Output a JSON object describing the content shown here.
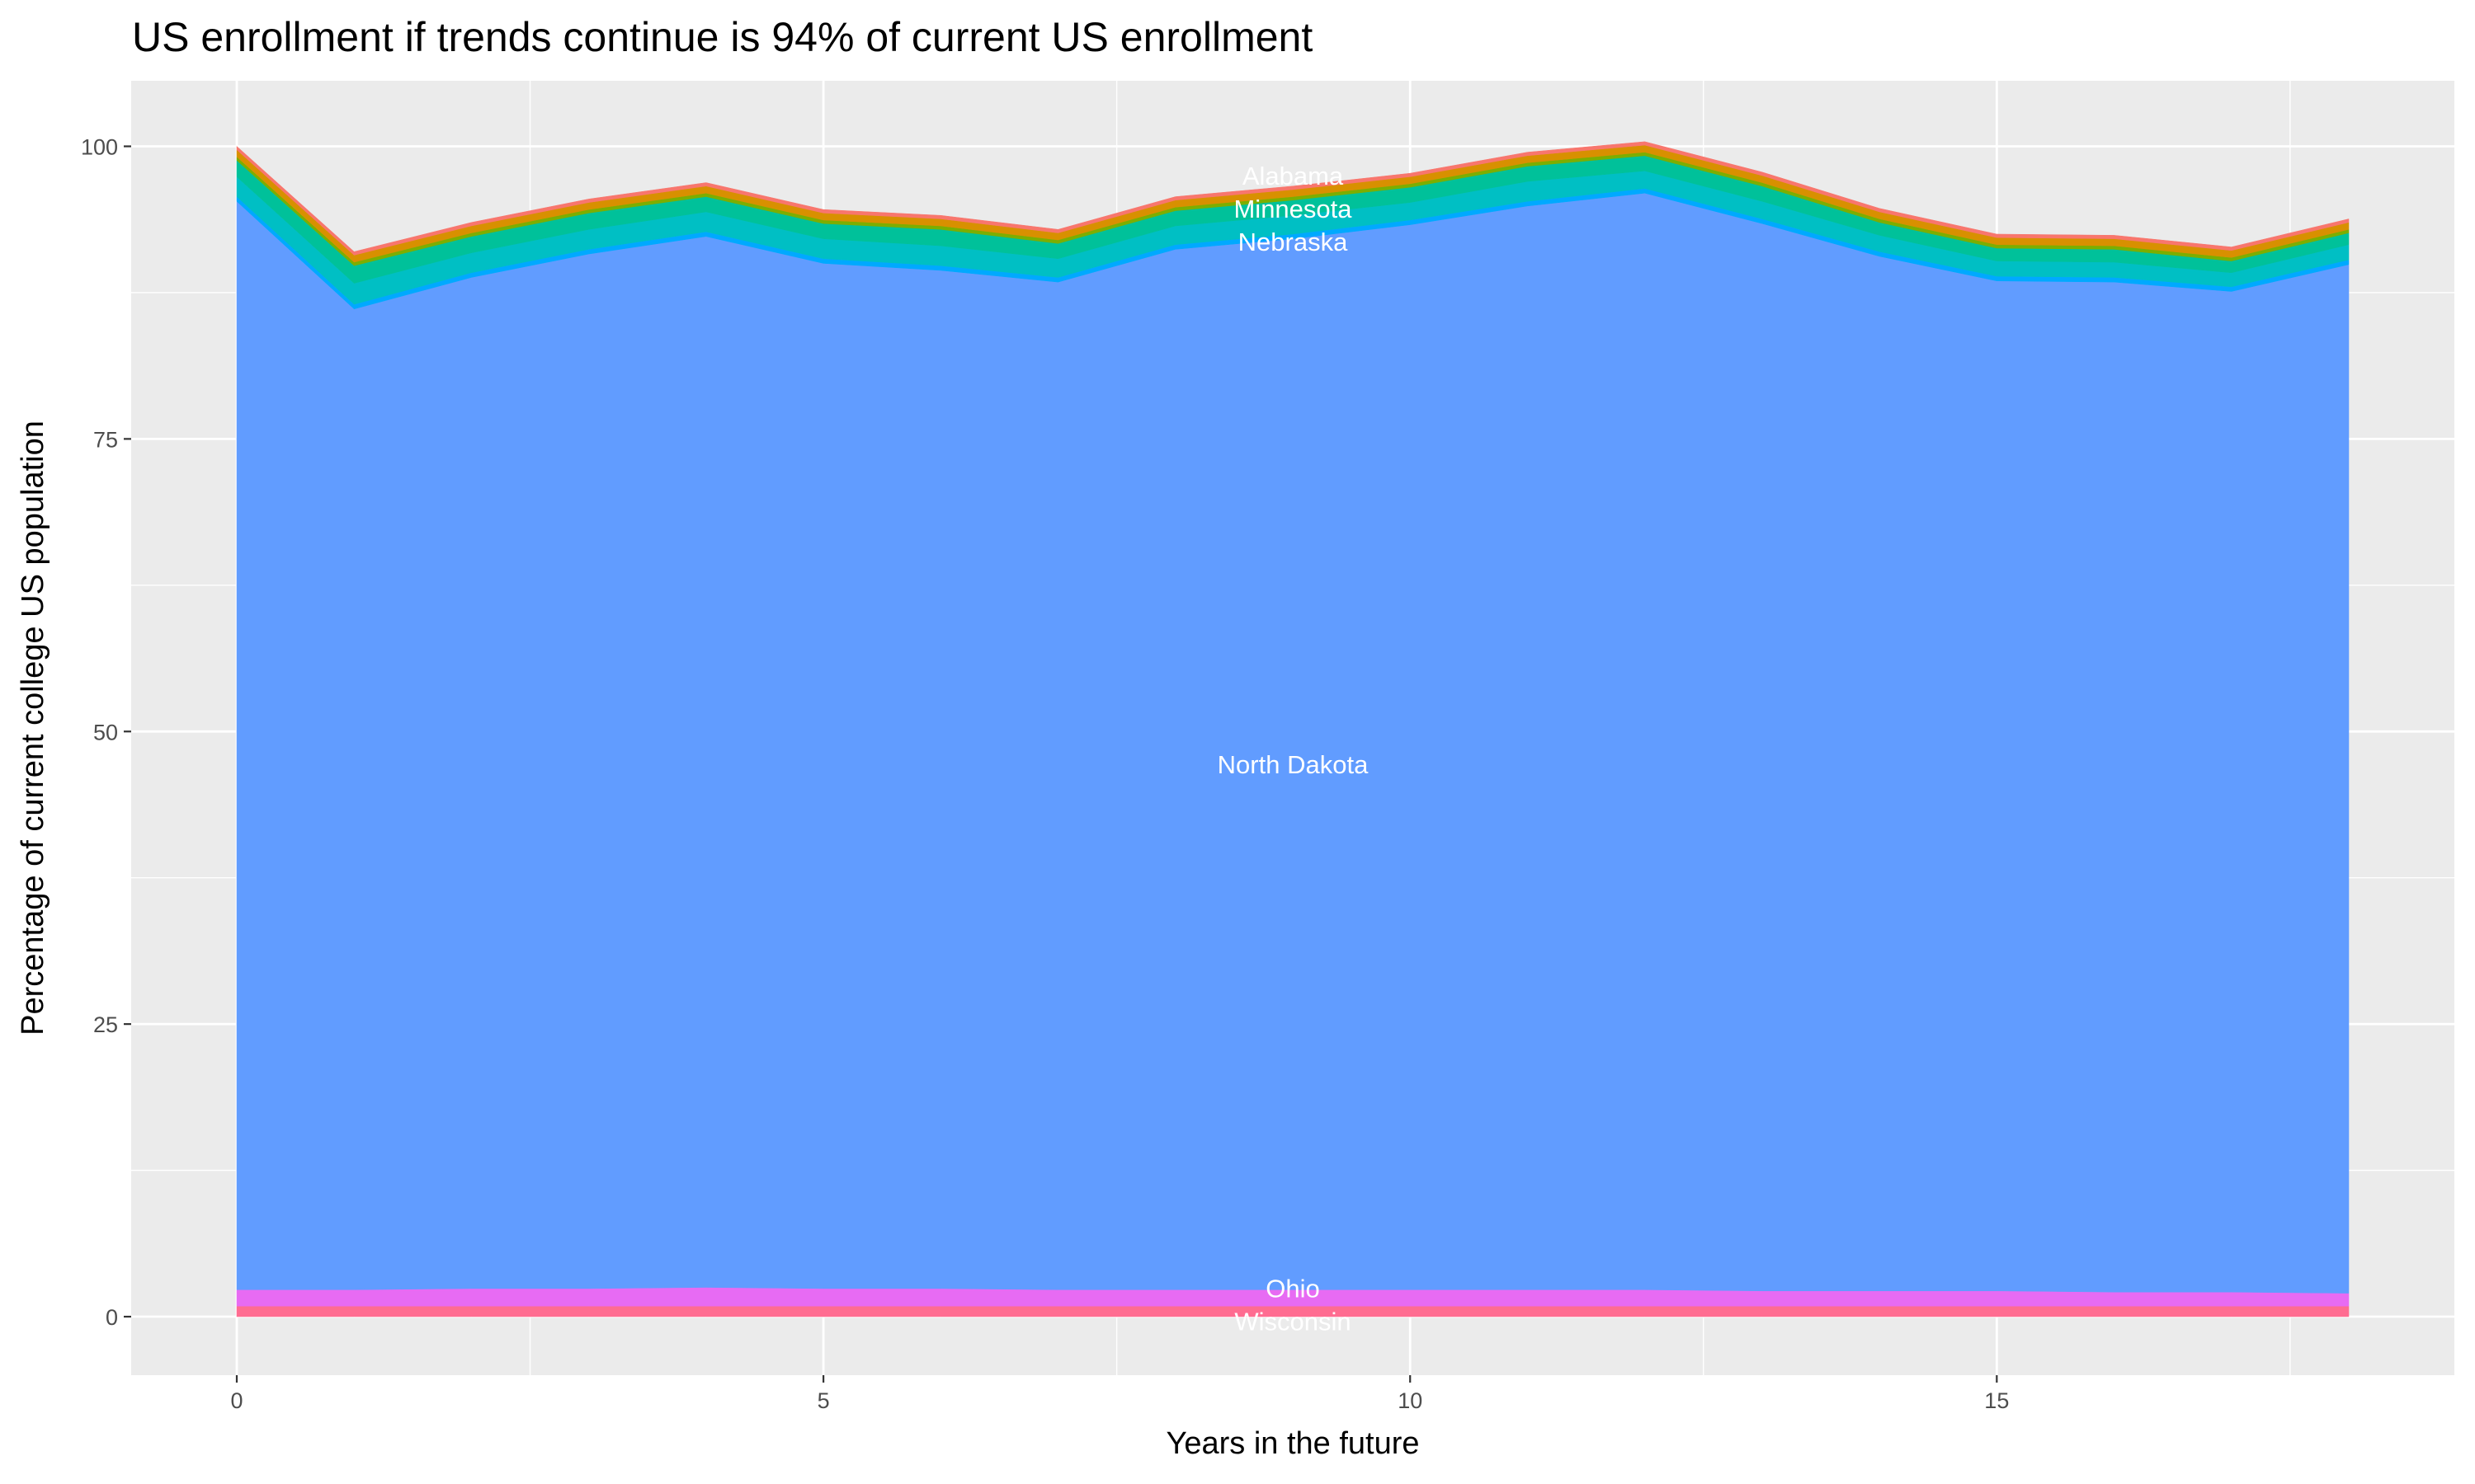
{
  "chart_data": {
    "type": "area",
    "stacked": true,
    "title": "US enrollment if trends continue is 94% of current US enrollment",
    "xlabel": "Years in the future",
    "ylabel": "Percentage of current college US population",
    "xlim": [
      -0.9,
      18.9
    ],
    "ylim": [
      -5,
      105.6
    ],
    "x_ticks": [
      0,
      5,
      10,
      15
    ],
    "y_ticks": [
      0,
      25,
      50,
      75,
      100
    ],
    "grid": true,
    "legend": "none",
    "x": [
      0,
      1,
      2,
      3,
      4,
      5,
      6,
      7,
      8,
      9,
      10,
      11,
      12,
      13,
      14,
      15,
      16,
      17,
      18
    ],
    "series": [
      {
        "name": "Wisconsin",
        "color": "#FF6C91",
        "label_shown": true,
        "values": [
          0.9,
          0.9,
          0.9,
          0.9,
          0.9,
          0.9,
          0.9,
          0.9,
          0.9,
          0.9,
          0.9,
          0.9,
          0.9,
          0.9,
          0.9,
          0.9,
          0.9,
          0.9,
          0.9
        ]
      },
      {
        "name": "Ohio",
        "color": "#E76BF3",
        "label_shown": true,
        "values": [
          1.4,
          1.4,
          1.5,
          1.5,
          1.6,
          1.5,
          1.5,
          1.4,
          1.4,
          1.4,
          1.4,
          1.4,
          1.4,
          1.3,
          1.3,
          1.3,
          1.2,
          1.2,
          1.1
        ]
      },
      {
        "name": "North Dakota",
        "color": "#619CFF",
        "label_shown": true,
        "values": [
          93.0,
          83.8,
          86.4,
          88.4,
          89.8,
          87.6,
          87.0,
          86.1,
          88.9,
          89.8,
          91.0,
          92.6,
          93.7,
          91.2,
          88.4,
          86.3,
          86.3,
          85.5,
          87.9
        ]
      },
      {
        "color": "#00A9FF",
        "values": [
          0.4,
          0.4,
          0.4,
          0.4,
          0.4,
          0.4,
          0.4,
          0.4,
          0.4,
          0.4,
          0.4,
          0.4,
          0.4,
          0.4,
          0.4,
          0.4,
          0.4,
          0.4,
          0.4
        ]
      },
      {
        "name": "Nebraska",
        "color": "#00BFC4",
        "label_shown": true,
        "values": [
          1.7,
          1.8,
          1.7,
          1.7,
          1.7,
          1.7,
          1.7,
          1.6,
          1.6,
          1.6,
          1.5,
          1.7,
          1.5,
          1.5,
          1.4,
          1.3,
          1.3,
          1.2,
          1.3
        ]
      },
      {
        "name": "Minnesota",
        "color": "#00C19A",
        "label_shown": true,
        "values": [
          1.4,
          1.5,
          1.4,
          1.4,
          1.3,
          1.3,
          1.4,
          1.3,
          1.3,
          1.3,
          1.3,
          1.3,
          1.3,
          1.3,
          1.1,
          1.1,
          1.1,
          1.0,
          1.0
        ]
      },
      {
        "color": "#7CAE00",
        "values": [
          0.3,
          0.3,
          0.3,
          0.3,
          0.3,
          0.3,
          0.3,
          0.3,
          0.3,
          0.3,
          0.3,
          0.3,
          0.3,
          0.3,
          0.3,
          0.3,
          0.3,
          0.3,
          0.3
        ]
      },
      {
        "name": "Alabama",
        "color": "#D89000",
        "label_shown": true,
        "values": [
          0.6,
          0.6,
          0.6,
          0.6,
          0.6,
          0.6,
          0.6,
          0.6,
          0.6,
          0.6,
          0.6,
          0.6,
          0.6,
          0.6,
          0.6,
          0.6,
          0.6,
          0.6,
          0.6
        ]
      },
      {
        "color": "#F8766D",
        "values": [
          0.3,
          0.3,
          0.3,
          0.3,
          0.3,
          0.3,
          0.3,
          0.3,
          0.3,
          0.3,
          0.3,
          0.3,
          0.3,
          0.3,
          0.3,
          0.3,
          0.3,
          0.3,
          0.3
        ]
      }
    ],
    "label_x": 9,
    "panel_background": "#EBEBEB",
    "grid_color": "#FFFFFF"
  }
}
